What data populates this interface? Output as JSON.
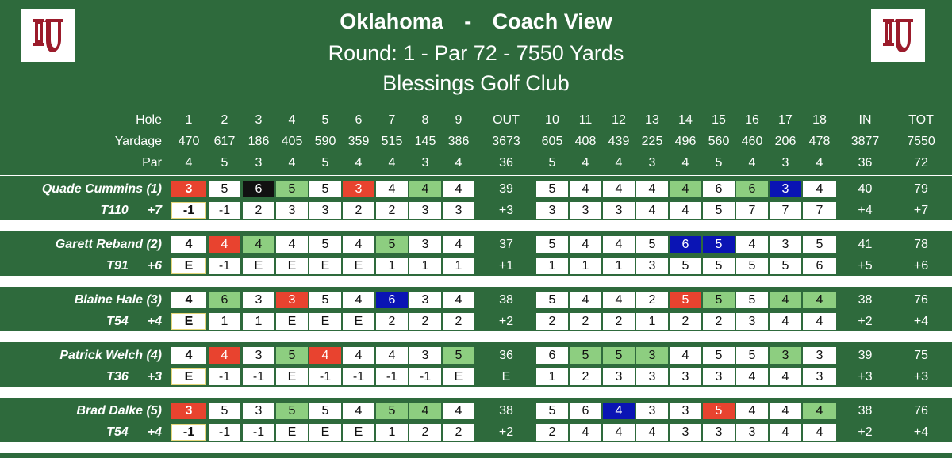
{
  "header": {
    "team": "Oklahoma",
    "separator": "-",
    "view": "Coach View",
    "round_line": "Round: 1 - Par 72 - 7550 Yards",
    "course": "Blessings Golf Club",
    "logo_icon": "ou-logo-icon"
  },
  "colors": {
    "green": "#2e6a3c",
    "birdie": "#8dce80",
    "bogey": "#e8432f",
    "double_bogey": "#0a14b4",
    "triple": "#111111"
  },
  "columns": [
    "1",
    "2",
    "3",
    "4",
    "5",
    "6",
    "7",
    "8",
    "9",
    "OUT",
    "10",
    "11",
    "12",
    "13",
    "14",
    "15",
    "16",
    "17",
    "18",
    "IN",
    "TOT"
  ],
  "info_rows": [
    {
      "label": "Hole",
      "values": [
        "1",
        "2",
        "3",
        "4",
        "5",
        "6",
        "7",
        "8",
        "9",
        "OUT",
        "10",
        "11",
        "12",
        "13",
        "14",
        "15",
        "16",
        "17",
        "18",
        "IN",
        "TOT"
      ]
    },
    {
      "label": "Yardage",
      "values": [
        "470",
        "617",
        "186",
        "405",
        "590",
        "359",
        "515",
        "145",
        "386",
        "3673",
        "605",
        "408",
        "439",
        "225",
        "496",
        "560",
        "460",
        "206",
        "478",
        "3877",
        "7550"
      ]
    },
    {
      "label": "Par",
      "values": [
        "4",
        "5",
        "3",
        "4",
        "5",
        "4",
        "4",
        "3",
        "4",
        "36",
        "5",
        "4",
        "4",
        "3",
        "4",
        "5",
        "4",
        "3",
        "4",
        "36",
        "72"
      ]
    }
  ],
  "players": [
    {
      "name": "Quade Cummins (1)",
      "position": "T110",
      "to_par": "+7",
      "scores": [
        "3",
        "5",
        "6",
        "5",
        "5",
        "3",
        "4",
        "4",
        "4",
        "39",
        "5",
        "4",
        "4",
        "4",
        "4",
        "6",
        "6",
        "3",
        "4",
        "40",
        "79"
      ],
      "score_styles": [
        "red",
        "",
        "black",
        "green",
        "",
        "red",
        "",
        "green",
        "",
        "",
        "",
        "",
        "",
        "green",
        "",
        "green",
        "blue",
        "",
        ""
      ],
      "running": [
        "-1",
        "-1",
        "2",
        "3",
        "3",
        "2",
        "2",
        "3",
        "3",
        "+3",
        "3",
        "3",
        "3",
        "4",
        "4",
        "5",
        "7",
        "7",
        "7",
        "+4",
        "+7"
      ]
    },
    {
      "name": "Garett Reband (2)",
      "position": "T91",
      "to_par": "+6",
      "scores": [
        "4",
        "4",
        "4",
        "4",
        "5",
        "4",
        "5",
        "3",
        "4",
        "37",
        "5",
        "4",
        "4",
        "5",
        "6",
        "5",
        "4",
        "3",
        "5",
        "41",
        "78"
      ],
      "score_styles": [
        "",
        "red",
        "green",
        "",
        "",
        "",
        "green",
        "",
        "",
        "",
        "",
        "",
        "",
        "blue",
        "blue",
        "",
        "",
        "",
        "green"
      ],
      "running": [
        "E",
        "-1",
        "E",
        "E",
        "E",
        "E",
        "1",
        "1",
        "1",
        "+1",
        "1",
        "1",
        "1",
        "3",
        "5",
        "5",
        "5",
        "5",
        "6",
        "+5",
        "+6"
      ]
    },
    {
      "name": "Blaine Hale (3)",
      "position": "T54",
      "to_par": "+4",
      "scores": [
        "4",
        "6",
        "3",
        "3",
        "5",
        "4",
        "6",
        "3",
        "4",
        "38",
        "5",
        "4",
        "4",
        "2",
        "5",
        "5",
        "5",
        "4",
        "4",
        "38",
        "76"
      ],
      "score_styles": [
        "",
        "green",
        "",
        "red",
        "",
        "",
        "blue",
        "",
        "",
        "",
        "",
        "",
        "",
        "red",
        "green",
        "",
        "green",
        "green",
        ""
      ],
      "running": [
        "E",
        "1",
        "1",
        "E",
        "E",
        "E",
        "2",
        "2",
        "2",
        "+2",
        "2",
        "2",
        "2",
        "1",
        "2",
        "2",
        "3",
        "4",
        "4",
        "+2",
        "+4"
      ]
    },
    {
      "name": "Patrick Welch (4)",
      "position": "T36",
      "to_par": "+3",
      "scores": [
        "4",
        "4",
        "3",
        "5",
        "4",
        "4",
        "4",
        "3",
        "5",
        "36",
        "6",
        "5",
        "5",
        "3",
        "4",
        "5",
        "5",
        "3",
        "3",
        "39",
        "75"
      ],
      "score_styles": [
        "",
        "red",
        "",
        "green",
        "red",
        "",
        "",
        "",
        "green",
        "",
        "green",
        "green",
        "green",
        "",
        "",
        "",
        "green",
        "",
        "red"
      ],
      "running": [
        "E",
        "-1",
        "-1",
        "E",
        "-1",
        "-1",
        "-1",
        "-1",
        "E",
        "E",
        "1",
        "2",
        "3",
        "3",
        "3",
        "3",
        "4",
        "4",
        "3",
        "+3",
        "+3"
      ]
    },
    {
      "name": "Brad Dalke (5)",
      "position": "T54",
      "to_par": "+4",
      "scores": [
        "3",
        "5",
        "3",
        "5",
        "5",
        "4",
        "5",
        "4",
        "4",
        "38",
        "5",
        "6",
        "4",
        "3",
        "3",
        "5",
        "4",
        "4",
        "4",
        "38",
        "76"
      ],
      "score_styles": [
        "red",
        "",
        "",
        "green",
        "",
        "",
        "green",
        "green",
        "",
        "",
        "",
        "blue",
        "",
        "",
        "red",
        "",
        "",
        "green",
        ""
      ],
      "running": [
        "-1",
        "-1",
        "-1",
        "E",
        "E",
        "E",
        "1",
        "2",
        "2",
        "+2",
        "2",
        "4",
        "4",
        "4",
        "3",
        "3",
        "3",
        "4",
        "4",
        "+2",
        "+4"
      ]
    }
  ]
}
